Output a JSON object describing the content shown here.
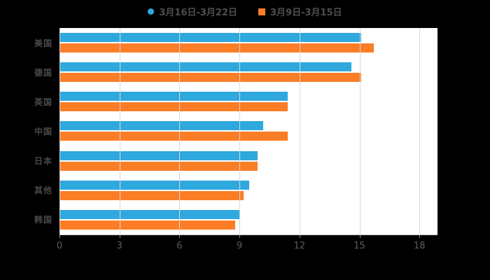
{
  "chart_data": {
    "type": "bar",
    "orientation": "horizontal",
    "title": "",
    "xlabel": "",
    "ylabel": "",
    "categories": [
      "美国",
      "德国",
      "英国",
      "中国",
      "日本",
      "其他",
      "韩国"
    ],
    "series": [
      {
        "name": "3月16日-3月22日",
        "color": "#2ea8dd",
        "marker": "circle",
        "values": [
          15.1,
          14.6,
          11.4,
          10.2,
          9.9,
          9.5,
          9.0
        ]
      },
      {
        "name": "3月9日-3月15日",
        "color": "#fb7d26",
        "marker": "square",
        "values": [
          15.7,
          15.1,
          11.4,
          11.4,
          9.9,
          9.2,
          8.8
        ]
      }
    ],
    "x_ticks": [
      0,
      3,
      6,
      9,
      12,
      15,
      18
    ],
    "xlim": [
      0,
      18.9
    ],
    "grid": true,
    "legend_position": "top",
    "background": "#000000",
    "plot_background": "#ffffff"
  }
}
